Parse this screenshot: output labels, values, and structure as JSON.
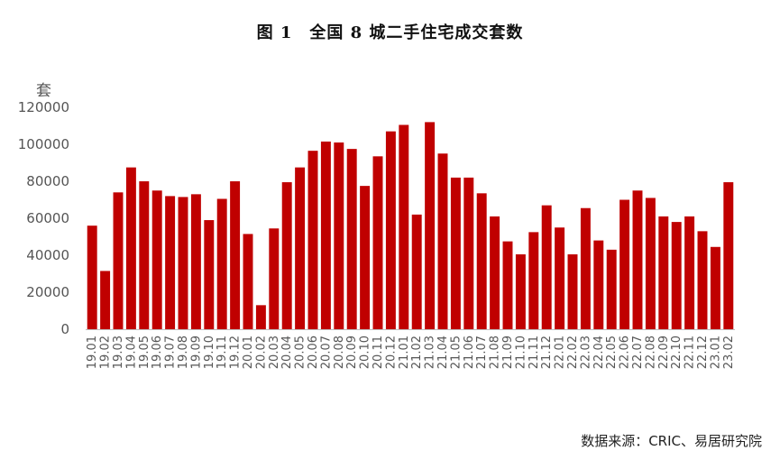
{
  "chart_data": {
    "type": "bar",
    "title": "图 1　全国 8 城二手住宅成交套数",
    "ylabel": "套",
    "ylim": [
      0,
      120000
    ],
    "yticks": [
      0,
      20000,
      40000,
      60000,
      80000,
      100000,
      120000
    ],
    "grid": false,
    "categories": [
      "19.01",
      "19.02",
      "19.03",
      "19.04",
      "19.05",
      "19.06",
      "19.07",
      "19.08",
      "19.09",
      "19.10",
      "19.11",
      "19.12",
      "20.01",
      "20.02",
      "20.03",
      "20.04",
      "20.05",
      "20.06",
      "20.07",
      "20.08",
      "20.09",
      "20.10",
      "20.11",
      "20.12",
      "21.01",
      "21.02",
      "21.03",
      "21.04",
      "21.05",
      "21.06",
      "21.07",
      "21.08",
      "21.09",
      "21.10",
      "21.11",
      "21.12",
      "22.01",
      "22.02",
      "22.03",
      "22.04",
      "22.05",
      "22.06",
      "22.07",
      "22.08",
      "22.09",
      "22.10",
      "22.11",
      "22.12",
      "23.01",
      "23.02"
    ],
    "values": [
      56000,
      31500,
      74000,
      87500,
      80000,
      75000,
      72000,
      71500,
      73000,
      59000,
      70500,
      80000,
      51500,
      13000,
      54500,
      79500,
      87500,
      96500,
      101500,
      101000,
      97500,
      77500,
      93500,
      107000,
      110500,
      62000,
      112000,
      95000,
      82000,
      82000,
      73500,
      61000,
      47500,
      40500,
      52500,
      67000,
      55000,
      40500,
      65500,
      48000,
      43000,
      70000,
      75000,
      71000,
      61000,
      58000,
      61000,
      53000,
      44500,
      79500
    ],
    "bar_color": "#c00000"
  },
  "source": "数据来源：CRIC、易居研究院"
}
